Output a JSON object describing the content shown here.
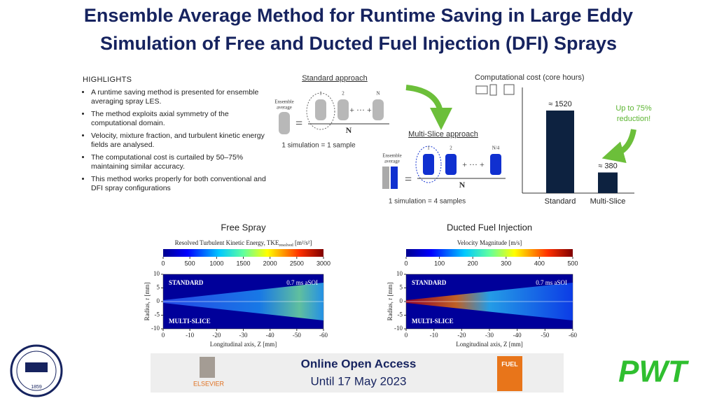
{
  "title": [
    "Ensemble Average Method for Runtime Saving in Large Eddy",
    "Simulation of Free and Ducted Fuel Injection (DFI) Sprays"
  ],
  "highlights": {
    "heading": "HIGHLIGHTS",
    "items": [
      "A runtime saving method is presented for ensemble averaging spray LES.",
      "The method exploits axial symmetry of the computational domain.",
      "Velocity, mixture fraction, and turbulent kinetic energy fields are analysed.",
      "The computational cost is curtailed by 50–75% maintaining similar accuracy.",
      "This method works properly for both conventional and DFI spray configurations"
    ]
  },
  "schematic": {
    "standard": {
      "title": "Standard approach",
      "ensemble": [
        "Ensemble",
        "average"
      ],
      "indices": [
        "1",
        "2",
        "N"
      ],
      "dots": "+ ··· +",
      "denominator": "N",
      "caption": "1 simulation = 1 sample"
    },
    "multi": {
      "title": "Multi-Slice approach",
      "ensemble": [
        "Ensemble",
        "average"
      ],
      "indices": [
        "1",
        "2",
        "N/4"
      ],
      "dots": "+ ··· +",
      "denominator": "N",
      "caption": "1 simulation = 4 samples"
    }
  },
  "cost_chart": {
    "type": "bar",
    "title": "Computational cost (core hours)",
    "categories": [
      "Standard",
      "Multi-Slice"
    ],
    "values": [
      1520,
      380
    ],
    "value_labels": [
      "≈ 1520",
      "≈ 380"
    ],
    "color": "#0d2240",
    "annotation": [
      "Up to 75%",
      "reduction!"
    ]
  },
  "panels": [
    {
      "title": "Free Spray",
      "colorbar": {
        "label": [
          "Resolved Turbulent Kinetic Energy, TKE",
          "resolved",
          " [m²/s²]"
        ],
        "clim": [
          0,
          3000
        ],
        "ticks": [
          0,
          500,
          1000,
          1500,
          2000,
          2500,
          3000
        ]
      },
      "xlim": [
        0,
        -60
      ],
      "xticks": [
        0,
        -10,
        -20,
        -30,
        -40,
        -50,
        -60
      ],
      "ylim": [
        -10,
        10
      ],
      "yticks": [
        10,
        5,
        0,
        -5,
        -10
      ],
      "xlabel": "Longitudinal axis, Z [mm]",
      "ylabel": "Radius, r [mm]",
      "labels": [
        "STANDARD",
        "0.7 ms aSOI",
        "MULTI-SLICE"
      ]
    },
    {
      "title": "Ducted Fuel Injection",
      "colorbar": {
        "label": [
          "Velocity  Magnitude [m/s]"
        ],
        "clim": [
          0,
          500
        ],
        "ticks": [
          0,
          100,
          200,
          300,
          400,
          500
        ]
      },
      "xlim": [
        0,
        -60
      ],
      "xticks": [
        0,
        -10,
        -20,
        -30,
        -40,
        -50,
        -60
      ],
      "ylim": [
        -10,
        10
      ],
      "yticks": [
        10,
        5,
        0,
        -5,
        -10
      ],
      "xlabel": "Longitudinal axis, Z [mm]",
      "ylabel": "Radius, r [mm]",
      "labels": [
        "STANDARD",
        "0.7 ms aSOI",
        "MULTI-SLICE"
      ]
    }
  ],
  "footer": {
    "access": "Online Open Access",
    "until": "Until 17 May 2023",
    "publisher": "ELSEVIER",
    "journal": "FUEL",
    "year": "1859",
    "logo": "PWT"
  }
}
